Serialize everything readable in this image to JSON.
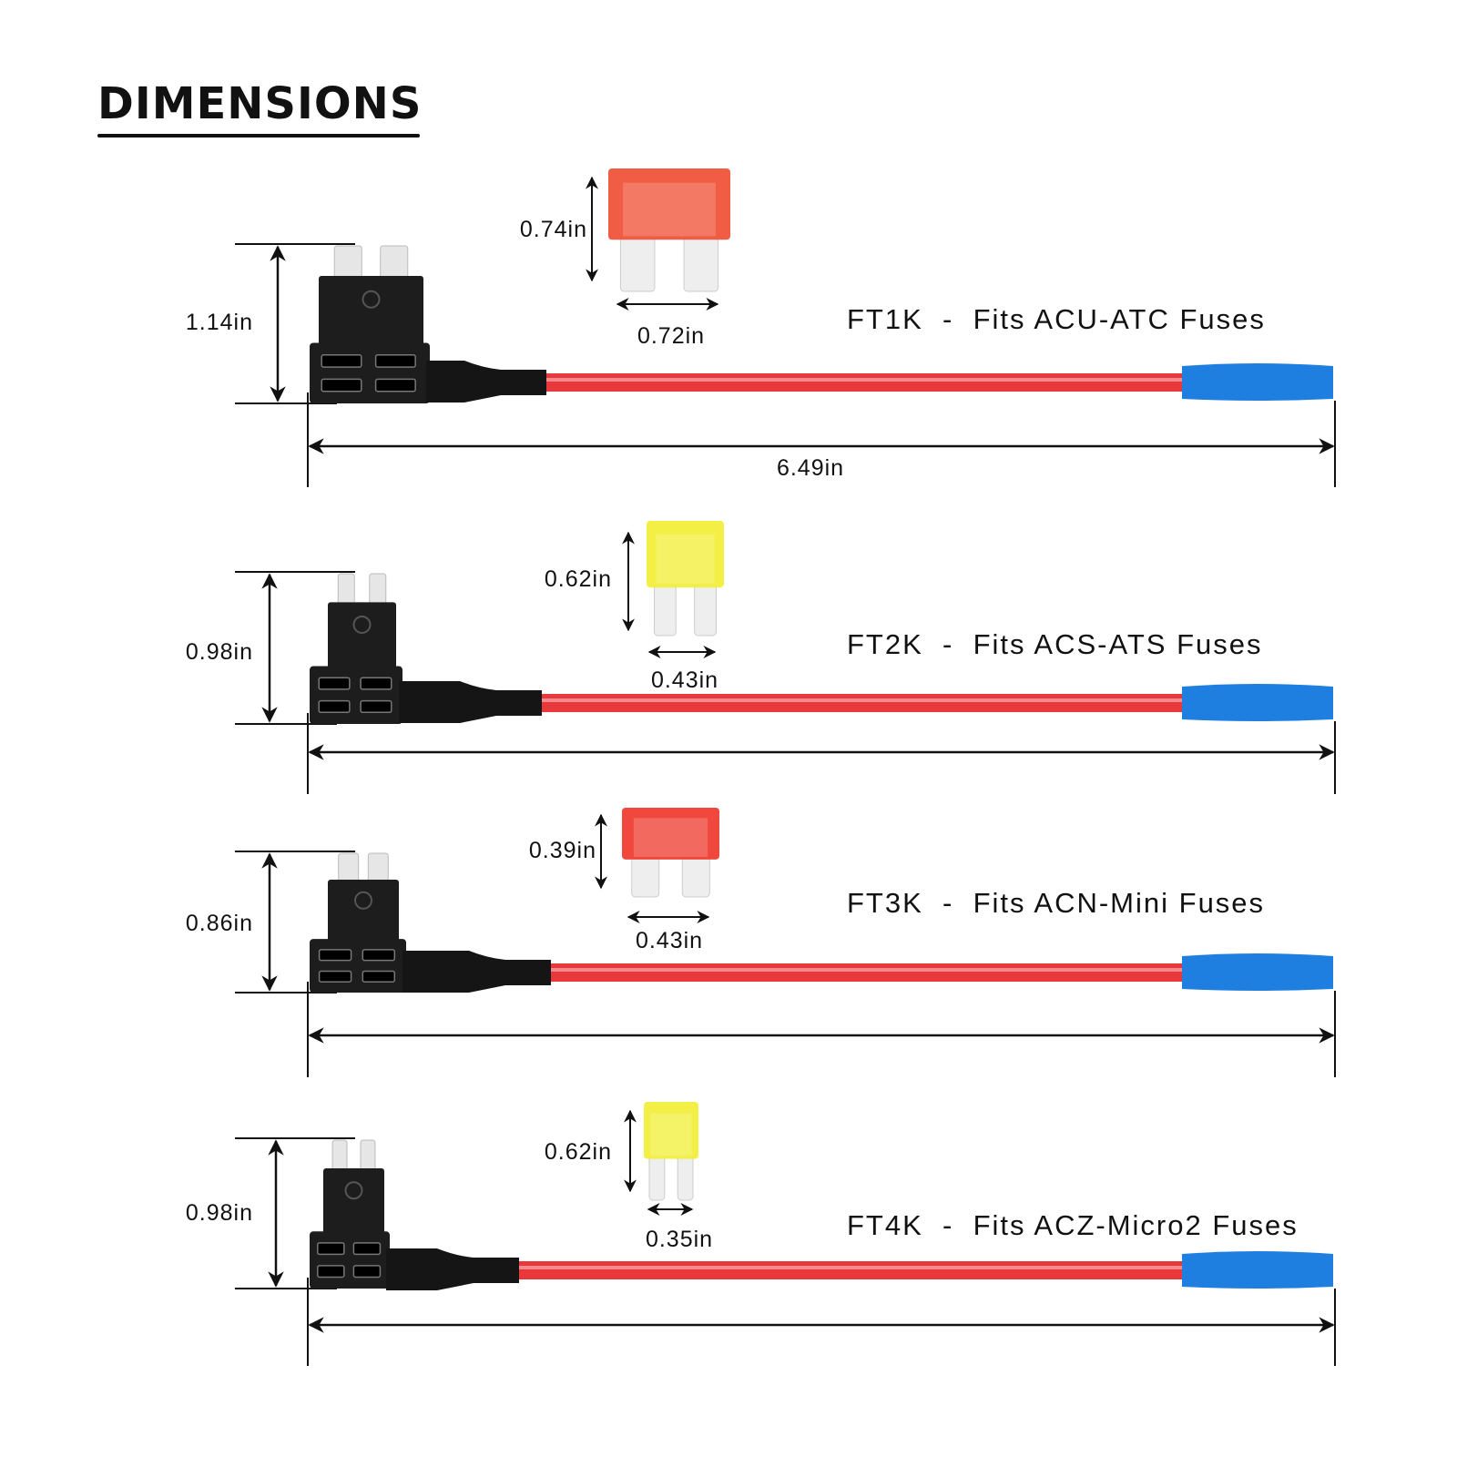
{
  "title": "DIMENSIONS",
  "overall_length": "6.49in",
  "rows": [
    {
      "model": "FT1K",
      "desc": "FT1K  -  Fits ACU-ATC Fuses",
      "holder_height": "1.14in",
      "fuse_height": "0.74in",
      "fuse_width": "0.72in",
      "fuse_color": "#f0533a"
    },
    {
      "model": "FT2K",
      "desc": "FT2K  -  Fits ACS-ATS Fuses",
      "holder_height": "0.98in",
      "fuse_height": "0.62in",
      "fuse_width": "0.43in",
      "fuse_color": "#f2ee3a"
    },
    {
      "model": "FT3K",
      "desc": "FT3K  -  Fits ACN-Mini Fuses",
      "holder_height": "0.86in",
      "fuse_height": "0.39in",
      "fuse_width": "0.43in",
      "fuse_color": "#ef3e33"
    },
    {
      "model": "FT4K",
      "desc": "FT4K  -  Fits ACZ-Micro2 Fuses",
      "holder_height": "0.98in",
      "fuse_height": "0.62in",
      "fuse_width": "0.35in",
      "fuse_color": "#f1ee3c"
    }
  ],
  "colors": {
    "wire": "#e8383c",
    "connector": "#1f7fe0",
    "holder": "#1d1d1d"
  }
}
